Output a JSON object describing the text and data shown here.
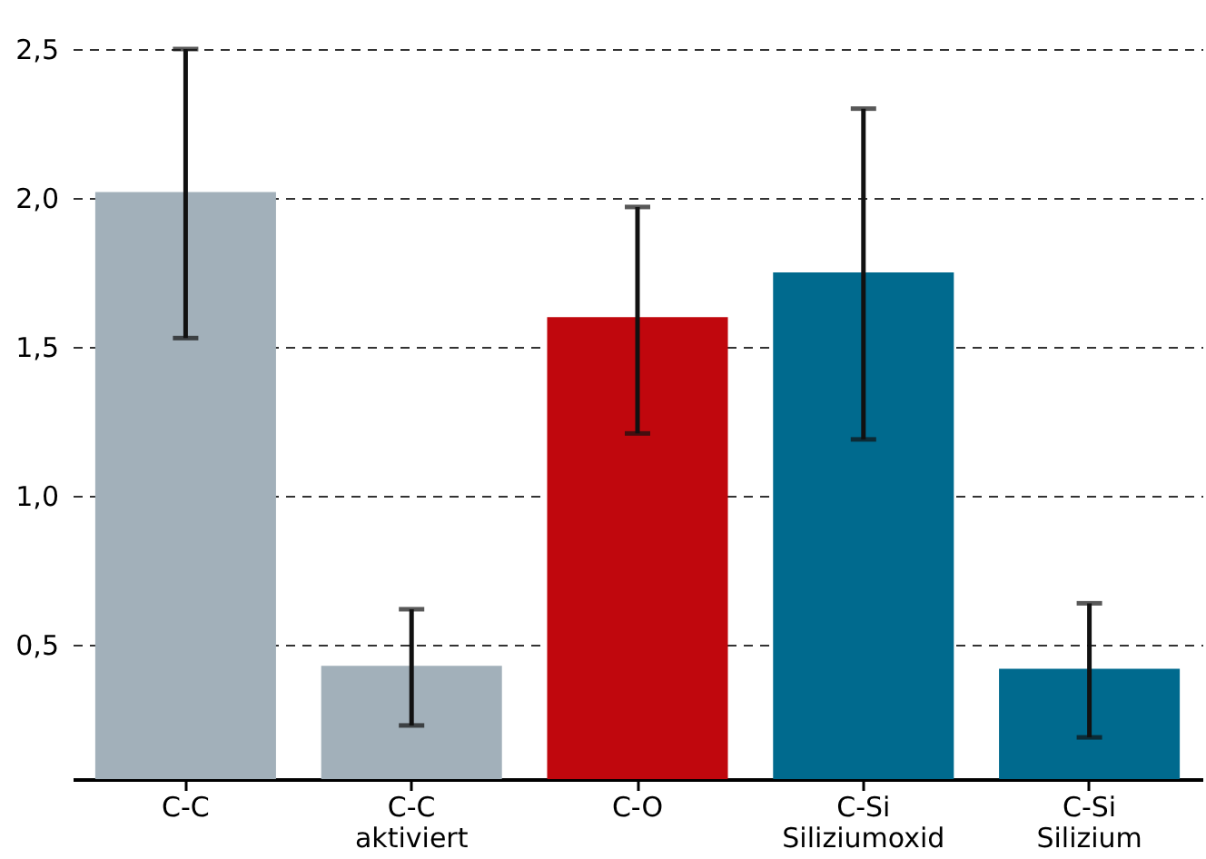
{
  "chart_data": {
    "type": "bar",
    "categories": [
      "C-C",
      "C-C aktiviert",
      "C-O",
      "C-Si Siliziumoxid",
      "C-Si Silizium"
    ],
    "values": [
      2.02,
      0.43,
      1.6,
      1.75,
      0.42
    ],
    "colors": [
      "#a2b0ba",
      "#a2b0ba",
      "#c0070d",
      "#006a8e",
      "#006a8e"
    ],
    "errors": [
      [
        1.53,
        2.5
      ],
      [
        0.23,
        0.62
      ],
      [
        1.21,
        1.97
      ],
      [
        1.19,
        2.3
      ],
      [
        0.19,
        0.64
      ]
    ],
    "ylim": [
      0.05,
      2.5
    ],
    "yticks": [
      {
        "value": 0.5,
        "label": "0,5"
      },
      {
        "value": 1.0,
        "label": "1,0"
      },
      {
        "value": 1.5,
        "label": "1,5"
      },
      {
        "value": 2.0,
        "label": "2,0"
      },
      {
        "value": 2.5,
        "label": "2,5"
      }
    ],
    "grid": "y"
  }
}
